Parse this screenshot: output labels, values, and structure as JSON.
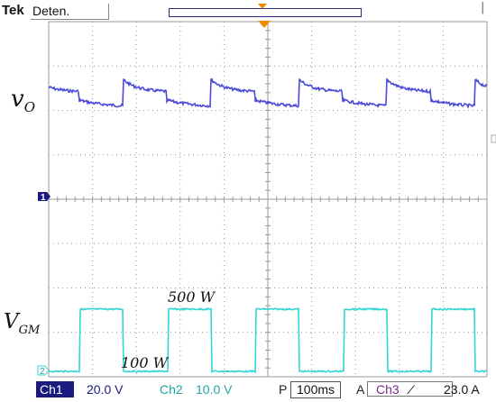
{
  "header": {
    "brand": "Tek",
    "status": "Deten.",
    "right_marker": "|"
  },
  "labels": {
    "vo_main": "v",
    "vo_sub": "O",
    "vgm_main": "V",
    "vgm_sub": "GM",
    "ann_high": "500 W",
    "ann_low": "100 W"
  },
  "markers": {
    "ch1": "1",
    "ch2": "2"
  },
  "footer": {
    "ch1_label": "Ch1",
    "ch1_scale": "20.0 V",
    "ch2_label": "Ch2",
    "ch2_scale": "10.0 V",
    "p_label": "P",
    "timebase": "100ms",
    "a_label": "A",
    "ch3_label": "Ch3",
    "trigger_icon": "∕",
    "trigger_level": "23.0 A"
  },
  "colors": {
    "grid": "#9a9a9a",
    "ch1_trace": "#4a4ad8",
    "ch2_trace": "#33d4d4",
    "ch1_marker": "#1a1a80",
    "trigger_marker": "#f08a00"
  }
}
